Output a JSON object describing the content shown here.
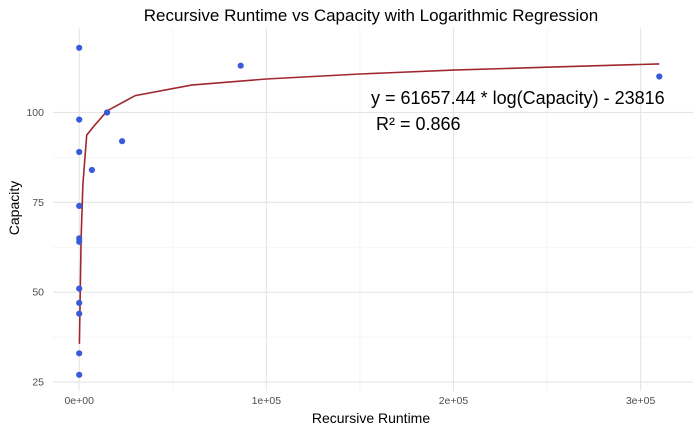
{
  "chart_data": {
    "type": "scatter",
    "title": "Recursive Runtime vs Capacity with Logarithmic Regression",
    "xlabel": "Recursive Runtime",
    "ylabel": "Capacity",
    "xlim": [
      -14000,
      328000
    ],
    "ylim": [
      22.5,
      123.5
    ],
    "x_ticks": [
      0,
      100000,
      200000,
      300000
    ],
    "x_tick_labels": [
      "0e+00",
      "1e+05",
      "2e+05",
      "3e+05"
    ],
    "y_ticks": [
      25,
      50,
      75,
      100
    ],
    "y_tick_labels": [
      "25",
      "50",
      "75",
      "100"
    ],
    "grid": true,
    "legend": "none",
    "points": [
      {
        "x": 0,
        "y": 118
      },
      {
        "x": 0,
        "y": 98
      },
      {
        "x": 0,
        "y": 89
      },
      {
        "x": 0,
        "y": 74
      },
      {
        "x": 0,
        "y": 65
      },
      {
        "x": 0,
        "y": 64
      },
      {
        "x": 0,
        "y": 51
      },
      {
        "x": 0,
        "y": 47
      },
      {
        "x": 0,
        "y": 44
      },
      {
        "x": 0,
        "y": 33
      },
      {
        "x": 0,
        "y": 27
      },
      {
        "x": 6800,
        "y": 84
      },
      {
        "x": 14900,
        "y": 100
      },
      {
        "x": 22900,
        "y": 92
      },
      {
        "x": 86300,
        "y": 113
      },
      {
        "x": 310000,
        "y": 110
      }
    ],
    "regression": {
      "x": [
        100,
        500,
        1000,
        2000,
        4000,
        8000,
        15000,
        30000,
        60000,
        100000,
        150000,
        200000,
        250000,
        310000
      ],
      "y": [
        35.6,
        47.6,
        65,
        80,
        93.7,
        96.3,
        100.5,
        104.7,
        107.6,
        109.3,
        110.7,
        111.8,
        112.6,
        113.5
      ]
    },
    "annotations": [
      "y =  61657.44  * log(Capacity)  -  23816",
      "R² =  0.866"
    ],
    "colors": {
      "points": "#3a5bd9",
      "regression": "#a0282d",
      "grid": "#e5e5e5"
    }
  }
}
